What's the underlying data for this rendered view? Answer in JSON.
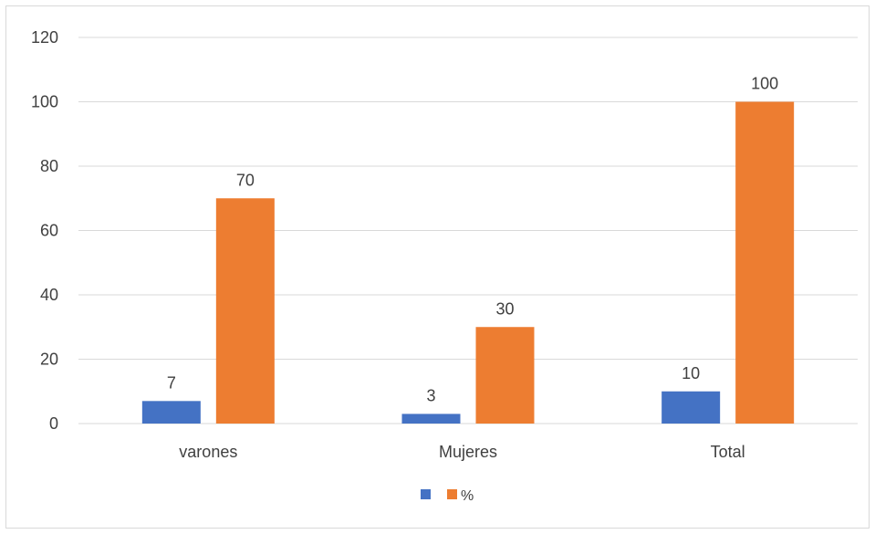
{
  "chart_data": {
    "type": "bar",
    "categories": [
      "varones",
      "Mujeres",
      "Total"
    ],
    "series": [
      {
        "values": [
          7,
          3,
          10
        ],
        "color": "#4472c4"
      },
      {
        "name": "%",
        "values": [
          70,
          30,
          100
        ],
        "color": "#ed7d31"
      }
    ],
    "ylim": [
      0,
      120
    ],
    "yticks": [
      0,
      20,
      40,
      60,
      80,
      100,
      120
    ],
    "grid": true,
    "legend_position": "bottom"
  }
}
